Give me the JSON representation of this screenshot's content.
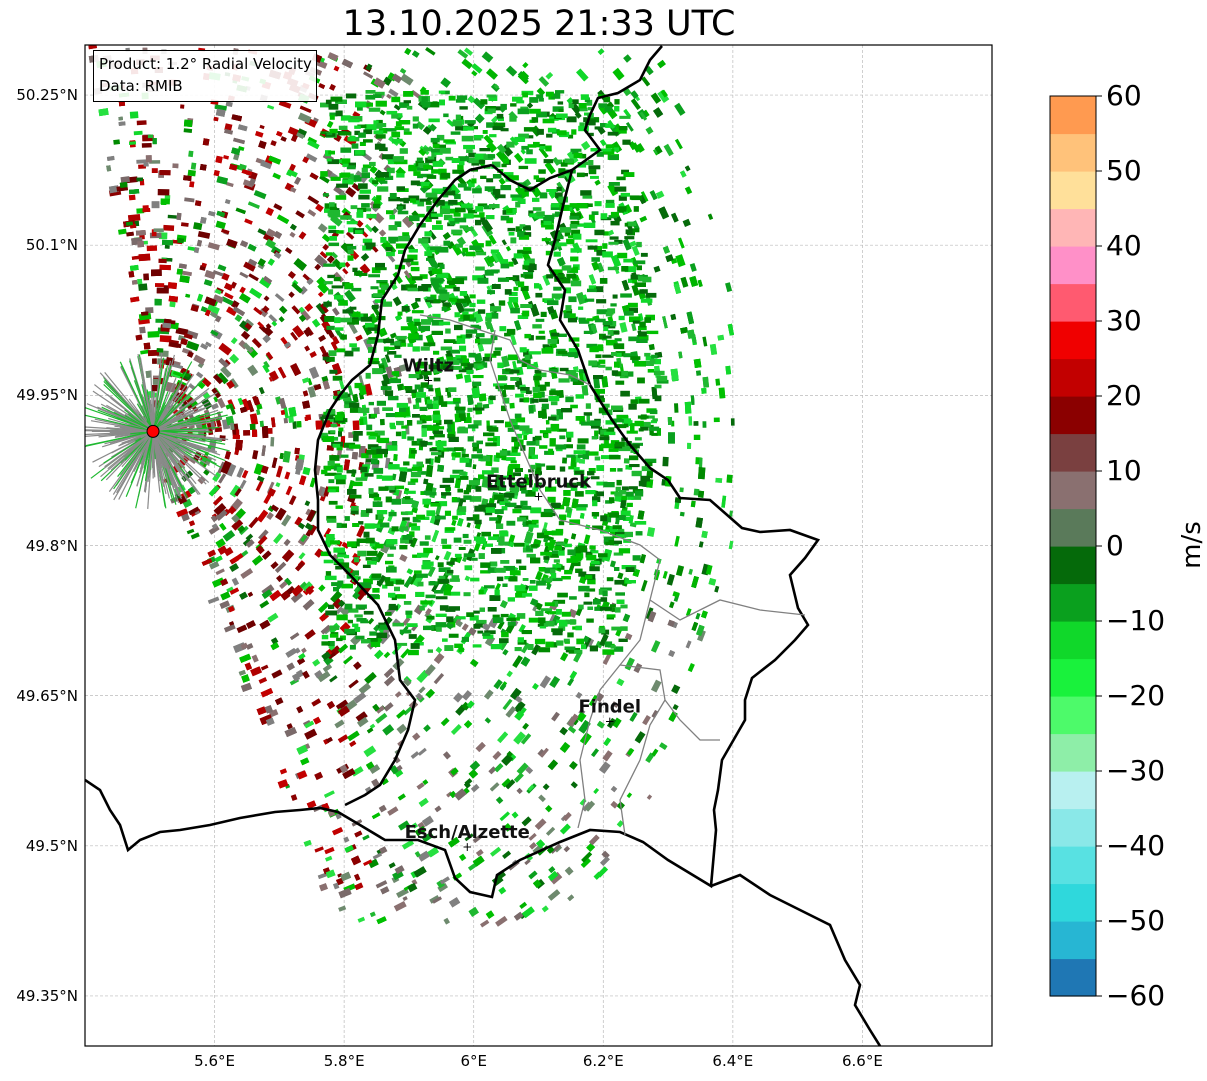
{
  "title": "13.10.2025 21:33 UTC",
  "info": {
    "product": "Product: 1.2° Radial Velocity",
    "source": "Data: RMIB"
  },
  "lat_ticks": [
    "50.25°N",
    "50.1°N",
    "49.95°N",
    "49.8°N",
    "49.65°N",
    "49.5°N",
    "49.35°N"
  ],
  "lon_ticks": [
    "5.6°E",
    "5.8°E",
    "6°E",
    "6.2°E",
    "6.4°E",
    "6.6°E"
  ],
  "extent": {
    "lon": [
      5.4,
      6.8
    ],
    "lat": [
      49.3,
      50.3
    ]
  },
  "cities": [
    {
      "name": "Wiltz",
      "lon": 5.93,
      "lat": 49.966
    },
    {
      "name": "Ettelbruck",
      "lon": 6.1,
      "lat": 49.85
    },
    {
      "name": "Findel",
      "lon": 6.21,
      "lat": 49.625
    },
    {
      "name": "Esch/Alzette",
      "lon": 5.99,
      "lat": 49.5
    }
  ],
  "radar_site": {
    "lon": 5.505,
    "lat": 49.914
  },
  "colorbar": {
    "label": "m/s",
    "range": [
      -60,
      60
    ],
    "ticks": [
      "60",
      "50",
      "40",
      "30",
      "20",
      "10",
      "0",
      "−10",
      "−20",
      "−30",
      "−40",
      "−50",
      "−60"
    ],
    "colors": [
      "#1f77b4",
      "#27b6d3",
      "#2fd8dc",
      "#58e1e2",
      "#8ae8e8",
      "#b8f0f0",
      "#8eeea8",
      "#4dfa6a",
      "#19f23c",
      "#10d82a",
      "#0aa01e",
      "#056a0a",
      "#5a7a5a",
      "#8a7070",
      "#7a4040",
      "#8b0000",
      "#c20000",
      "#f00000",
      "#ff5a70",
      "#ff90c8",
      "#ffb6b6",
      "#ffe09a",
      "#ffc27a",
      "#ff9a50"
    ]
  }
}
